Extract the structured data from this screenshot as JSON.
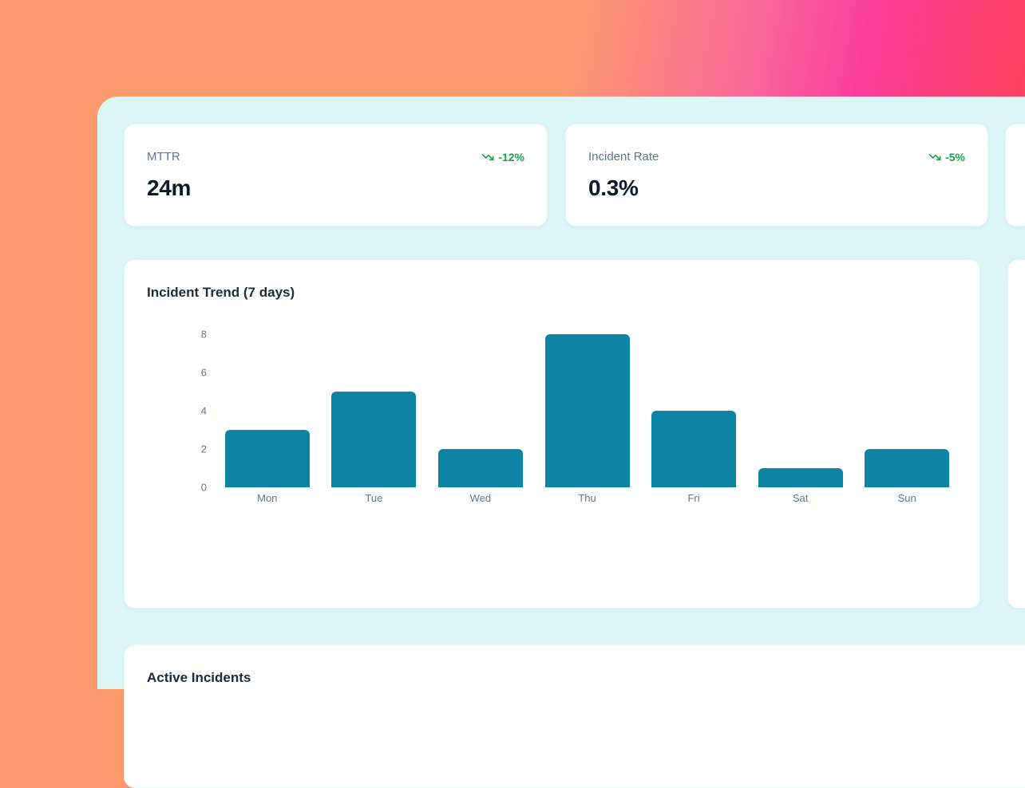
{
  "theme": {
    "bg_gradient_orange": "#fd9a6e",
    "bg_gradient_pink": "#fa3f9b",
    "bg_gradient_red": "#fb4153",
    "panel_bg": "#dcf6f5",
    "card_bg": "#ffffff",
    "bar_color": "#0d84a6",
    "trend_green": "#16a34a",
    "label_gray": "#64748b",
    "value_navy": "#0f172a",
    "title_navy": "#1e293b"
  },
  "kpi_cards": [
    {
      "label": "MTTR",
      "value": "24m",
      "trend": "-12%",
      "trend_icon": "trending-down-icon",
      "trend_color": "#16a34a"
    },
    {
      "label": "Incident Rate",
      "value": "0.3%",
      "trend": "-5%",
      "trend_icon": "trending-down-icon",
      "trend_color": "#16a34a"
    }
  ],
  "chart_data": {
    "type": "bar",
    "title": "Incident Trend (7 days)",
    "categories": [
      "Mon",
      "Tue",
      "Wed",
      "Thu",
      "Fri",
      "Sat",
      "Sun"
    ],
    "values": [
      3,
      5,
      2,
      8,
      4,
      1,
      2
    ],
    "yticks": [
      0,
      2,
      4,
      6,
      8
    ],
    "ylim": [
      0,
      8
    ],
    "xlabel": "",
    "ylabel": "",
    "grid": false,
    "legend": false,
    "bar_color": "#0d84a6"
  },
  "active_incidents": {
    "title": "Active Incidents"
  }
}
